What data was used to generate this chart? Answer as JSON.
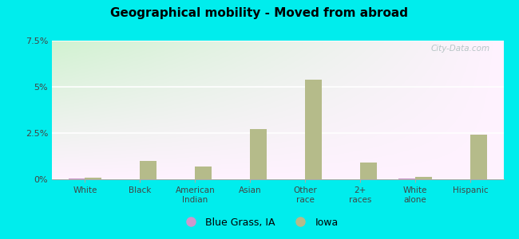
{
  "title": "Geographical mobility - Moved from abroad",
  "categories": [
    "White",
    "Black",
    "American\nIndian",
    "Asian",
    "Other\nrace",
    "2+\nraces",
    "White\nalone",
    "Hispanic"
  ],
  "blue_grass_values": [
    0.05,
    0.0,
    0.0,
    0.0,
    0.0,
    0.0,
    0.05,
    0.0
  ],
  "iowa_values": [
    0.1,
    1.0,
    0.7,
    2.7,
    5.4,
    0.9,
    0.15,
    2.4
  ],
  "blue_grass_color": "#cc99cc",
  "iowa_color": "#b5bb8a",
  "ylim": [
    0,
    7.5
  ],
  "yticks": [
    0,
    2.5,
    5.0,
    7.5
  ],
  "ytick_labels": [
    "0%",
    "2.5%",
    "5%",
    "7.5%"
  ],
  "outer_background": "#00eded",
  "watermark": "City-Data.com",
  "legend_blue_grass": "Blue Grass, IA",
  "legend_iowa": "Iowa",
  "bar_width": 0.3
}
